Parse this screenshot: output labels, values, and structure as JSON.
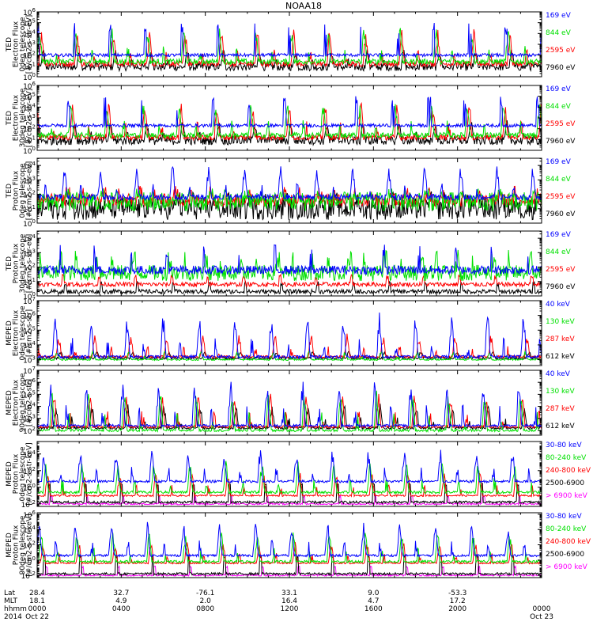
{
  "chart_data": {
    "type": "line",
    "title": "NOAA18",
    "x_range_hours": [
      0,
      24
    ],
    "panels": [
      {
        "ylabel": [
          "TED",
          "Electron Flux",
          "0deg telescope",
          "[#/cm2-s-str-eV]"
        ],
        "ylim_exp": [
          0,
          6
        ],
        "y_ticks_exp": [
          0,
          1,
          2,
          3,
          4,
          5,
          6
        ],
        "series": [
          {
            "name": "7960 eV",
            "color": "#000000",
            "base_exp": 0.9,
            "peak_exp": 2.6,
            "noise": 0.7,
            "style": "spiky"
          },
          {
            "name": "2595 eV",
            "color": "#ff0000",
            "base_exp": 1.2,
            "peak_exp": 4.4,
            "noise": 0.5,
            "style": "spiky"
          },
          {
            "name": "844 eV",
            "color": "#00e000",
            "base_exp": 1.4,
            "peak_exp": 4.6,
            "noise": 0.5,
            "style": "spiky"
          },
          {
            "name": "169 eV",
            "color": "#0000ff",
            "base_exp": 2.0,
            "peak_exp": 5.0,
            "noise": 0.15,
            "style": "band"
          }
        ]
      },
      {
        "ylabel": [
          "TED",
          "Electron Flux",
          "30deg telescope",
          "[#/cm2-s-str-eV]"
        ],
        "ylim_exp": [
          0,
          6
        ],
        "y_ticks_exp": [
          0,
          1,
          2,
          3,
          4,
          5,
          6
        ],
        "series": [
          {
            "name": "7960 eV",
            "color": "#000000",
            "base_exp": 0.9,
            "peak_exp": 2.8,
            "noise": 0.8,
            "style": "spiky"
          },
          {
            "name": "2595 eV",
            "color": "#ff0000",
            "base_exp": 1.2,
            "peak_exp": 4.5,
            "noise": 0.5,
            "style": "spiky"
          },
          {
            "name": "844 eV",
            "color": "#00e000",
            "base_exp": 1.4,
            "peak_exp": 4.5,
            "noise": 0.5,
            "style": "spiky"
          },
          {
            "name": "169 eV",
            "color": "#0000ff",
            "base_exp": 2.3,
            "peak_exp": 5.0,
            "noise": 0.15,
            "style": "band"
          }
        ]
      },
      {
        "ylabel": [
          "TED",
          "Proton Flux",
          "0deg telescope",
          "[#/cm2-s-str-eV]"
        ],
        "ylim_exp": [
          0,
          4.5
        ],
        "y_ticks_exp": [
          0,
          1,
          2,
          3,
          4
        ],
        "series": [
          {
            "name": "7960 eV",
            "color": "#000000",
            "base_exp": 1.0,
            "peak_exp": 2.2,
            "noise": 0.7,
            "style": "noisy"
          },
          {
            "name": "2595 eV",
            "color": "#ff0000",
            "base_exp": 1.6,
            "peak_exp": 2.6,
            "noise": 0.4,
            "style": "noisy"
          },
          {
            "name": "844 eV",
            "color": "#00e000",
            "base_exp": 1.5,
            "peak_exp": 2.4,
            "noise": 0.6,
            "style": "noisy"
          },
          {
            "name": "169 eV",
            "color": "#0000ff",
            "base_exp": 1.8,
            "peak_exp": 4.0,
            "noise": 0.4,
            "style": "spiky"
          }
        ]
      },
      {
        "ylabel": [
          "TED",
          "Proton Flux",
          "30deg telescope",
          "[#/cm2-s-str-eV]"
        ],
        "ylim_exp": [
          0,
          4.5
        ],
        "y_ticks_exp": [
          0,
          1,
          2,
          3,
          4
        ],
        "series": [
          {
            "name": "7960 eV",
            "color": "#000000",
            "base_exp": 0.3,
            "peak_exp": 1.0,
            "noise": 0.3,
            "style": "sparse"
          },
          {
            "name": "2595 eV",
            "color": "#ff0000",
            "base_exp": 0.8,
            "peak_exp": 1.5,
            "noise": 0.3,
            "style": "sparse"
          },
          {
            "name": "844 eV",
            "color": "#00e000",
            "base_exp": 1.6,
            "peak_exp": 3.2,
            "noise": 0.5,
            "style": "noisy"
          },
          {
            "name": "169 eV",
            "color": "#0000ff",
            "base_exp": 1.8,
            "peak_exp": 3.6,
            "noise": 0.3,
            "style": "band"
          }
        ]
      },
      {
        "ylabel": [
          "MEPED",
          "Electron Flux",
          "0deg telescope",
          "[#/cm2-s-str]"
        ],
        "ylim_exp": [
          2.6,
          7
        ],
        "y_ticks_exp": [
          3,
          4,
          5,
          6,
          7
        ],
        "series": [
          {
            "name": "612 keV",
            "color": "#000000",
            "base_exp": 3.1,
            "peak_exp": 3.6,
            "noise": 0.15,
            "style": "spiky"
          },
          {
            "name": "287 keV",
            "color": "#ff0000",
            "base_exp": 3.2,
            "peak_exp": 4.8,
            "noise": 0.15,
            "style": "spiky"
          },
          {
            "name": "130 keV",
            "color": "#00e000",
            "base_exp": 3.0,
            "peak_exp": 3.6,
            "noise": 0.1,
            "style": "spiky"
          },
          {
            "name": "40 keV",
            "color": "#0000ff",
            "base_exp": 3.2,
            "peak_exp": 6.2,
            "noise": 0.2,
            "style": "spiky"
          }
        ]
      },
      {
        "ylabel": [
          "MEPED",
          "Electron Flux",
          "90deg telescope",
          "[#/cm2-s-str]"
        ],
        "ylim_exp": [
          1.6,
          7
        ],
        "y_ticks_exp": [
          2,
          3,
          4,
          5,
          6,
          7
        ],
        "series": [
          {
            "name": "612 keV",
            "color": "#000000",
            "base_exp": 2.2,
            "peak_exp": 4.3,
            "noise": 0.2,
            "style": "spiky"
          },
          {
            "name": "287 keV",
            "color": "#ff0000",
            "base_exp": 2.3,
            "peak_exp": 5.2,
            "noise": 0.2,
            "style": "spiky"
          },
          {
            "name": "130 keV",
            "color": "#00e000",
            "base_exp": 2.0,
            "peak_exp": 5.4,
            "noise": 0.2,
            "style": "spiky"
          },
          {
            "name": "40 keV",
            "color": "#0000ff",
            "base_exp": 2.4,
            "peak_exp": 6.2,
            "noise": 0.2,
            "style": "spiky"
          }
        ]
      },
      {
        "ylabel": [
          "MEPED",
          "Proton Flux",
          "0deg telescope",
          "[#/cm2-s-str-keV]"
        ],
        "ylim_exp": [
          -2.3,
          5.5
        ],
        "y_ticks_exp": [
          -2,
          0,
          2,
          4
        ],
        "series": [
          {
            "name": "> 6900 keV",
            "color": "#ff00ff",
            "base_exp": -2.0,
            "peak_exp": -1.0,
            "noise": 0.2,
            "style": "sparse"
          },
          {
            "name": "2500-6900",
            "color": "#000000",
            "base_exp": -1.8,
            "peak_exp": 0.5,
            "noise": 0.3,
            "style": "sparse"
          },
          {
            "name": "240-800 keV",
            "color": "#ff0000",
            "base_exp": -1.0,
            "peak_exp": 1.8,
            "noise": 0.2,
            "style": "spiky"
          },
          {
            "name": "80-240 keV",
            "color": "#00e000",
            "base_exp": -0.6,
            "peak_exp": 3.3,
            "noise": 0.3,
            "style": "spiky"
          },
          {
            "name": "30-80 keV",
            "color": "#0000ff",
            "base_exp": 0.7,
            "peak_exp": 4.6,
            "noise": 0.3,
            "style": "spiky"
          }
        ]
      },
      {
        "ylabel": [
          "MEPED",
          "Proton Flux",
          "90deg telescope",
          "[#/cm2-s-str-keV]"
        ],
        "ylim_exp": [
          -2.3,
          6.2
        ],
        "y_ticks_exp": [
          -2,
          0,
          2,
          4,
          6
        ],
        "series": [
          {
            "name": "> 6900 keV",
            "color": "#ff00ff",
            "base_exp": -2.0,
            "peak_exp": -0.8,
            "noise": 0.2,
            "style": "sparse"
          },
          {
            "name": "2500-6900",
            "color": "#000000",
            "base_exp": -1.8,
            "peak_exp": 0.6,
            "noise": 0.3,
            "style": "sparse"
          },
          {
            "name": "240-800 keV",
            "color": "#ff0000",
            "base_exp": -0.4,
            "peak_exp": 2.5,
            "noise": 0.2,
            "style": "spiky"
          },
          {
            "name": "80-240 keV",
            "color": "#00e000",
            "base_exp": -0.2,
            "peak_exp": 3.8,
            "noise": 0.3,
            "style": "spiky"
          },
          {
            "name": "30-80 keV",
            "color": "#0000ff",
            "base_exp": 0.6,
            "peak_exp": 5.0,
            "noise": 0.3,
            "style": "spiky"
          }
        ]
      }
    ],
    "x_axis": {
      "row_labels": [
        "Lat",
        "MLT",
        "hhmm",
        "2014"
      ],
      "ticks": [
        {
          "hour": 0,
          "lat": "28.4",
          "mlt": "18.1",
          "hhmm": "0000",
          "date": "Oct 22"
        },
        {
          "hour": 4,
          "lat": "32.7",
          "mlt": "4.9",
          "hhmm": "0400",
          "date": ""
        },
        {
          "hour": 8,
          "lat": "-76.1",
          "mlt": "2.0",
          "hhmm": "0800",
          "date": ""
        },
        {
          "hour": 12,
          "lat": "33.1",
          "mlt": "16.4",
          "hhmm": "1200",
          "date": ""
        },
        {
          "hour": 16,
          "lat": "9.0",
          "mlt": "4.7",
          "hhmm": "1600",
          "date": ""
        },
        {
          "hour": 20,
          "lat": "-53.3",
          "mlt": "17.2",
          "hhmm": "2000",
          "date": ""
        },
        {
          "hour": 24,
          "lat": "",
          "mlt": "",
          "hhmm": "0000",
          "date": "Oct 23"
        }
      ]
    }
  }
}
